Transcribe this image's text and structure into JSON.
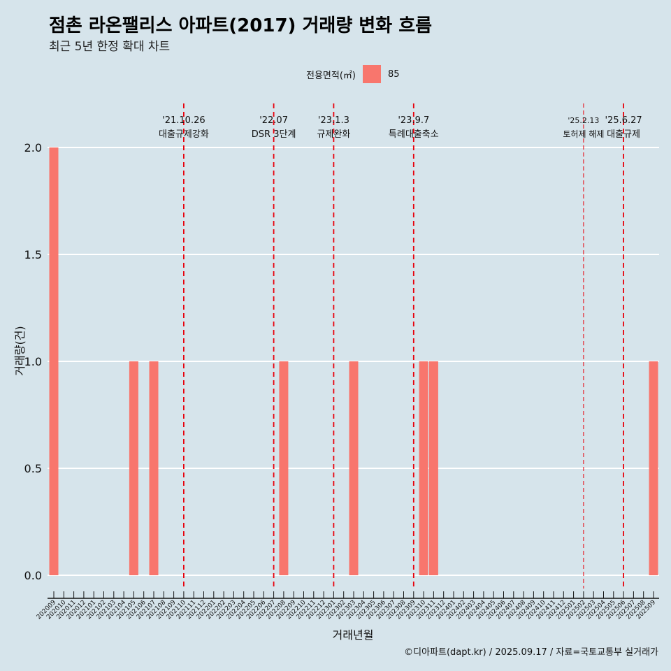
{
  "header": {
    "title": "점촌 라온팰리스 아파트(2017) 거래량 변화 흐름",
    "subtitle": "최근 5년 한정 확대 차트"
  },
  "legend": {
    "title": "전용면적(㎡)",
    "entries": [
      {
        "label": "85",
        "color": "#f8766d"
      }
    ]
  },
  "caption": "©디아파트(dapt.kr) / 2025.09.17 / 자료=국토교통부 실거래가",
  "chart_data": {
    "type": "bar",
    "title": "점촌 라온팰리스 아파트(2017) 거래량 변화 흐름",
    "subtitle": "최근 5년 한정 확대 차트",
    "xlabel": "거래년월",
    "ylabel": "거래량(건)",
    "ylim": [
      0,
      2
    ],
    "yticks": [
      "0.0",
      "0.5",
      "1.0",
      "1.5",
      "2.0"
    ],
    "grid": true,
    "legend_position": "top",
    "categories": [
      "202009",
      "202010",
      "202011",
      "202012",
      "202101",
      "202102",
      "202103",
      "202104",
      "202105",
      "202106",
      "202107",
      "202108",
      "202109",
      "202110",
      "202111",
      "202112",
      "202201",
      "202202",
      "202203",
      "202204",
      "202205",
      "202206",
      "202207",
      "202208",
      "202209",
      "202210",
      "202211",
      "202212",
      "202301",
      "202302",
      "202303",
      "202304",
      "202305",
      "202306",
      "202307",
      "202308",
      "202309",
      "202310",
      "202311",
      "202312",
      "202401",
      "202402",
      "202403",
      "202404",
      "202405",
      "202406",
      "202407",
      "202408",
      "202409",
      "202410",
      "202411",
      "202412",
      "202501",
      "202502",
      "202503",
      "202504",
      "202505",
      "202506",
      "202507",
      "202508",
      "202509"
    ],
    "series": [
      {
        "name": "85",
        "color": "#f8766d",
        "values": [
          2,
          0,
          0,
          0,
          0,
          0,
          0,
          0,
          1,
          0,
          1,
          0,
          0,
          0,
          0,
          0,
          0,
          0,
          0,
          0,
          0,
          0,
          0,
          1,
          0,
          0,
          0,
          0,
          0,
          0,
          1,
          0,
          0,
          0,
          0,
          0,
          0,
          1,
          1,
          0,
          0,
          0,
          0,
          0,
          0,
          0,
          0,
          0,
          0,
          0,
          0,
          0,
          0,
          0,
          0,
          0,
          0,
          0,
          0,
          0,
          1
        ]
      }
    ],
    "annotations": [
      {
        "x": 13.0,
        "date": "'21.10.26",
        "label": "대출규제강화",
        "style": "dashed"
      },
      {
        "x": 22.0,
        "date": "'22.07",
        "label": "DSR 3단계",
        "style": "dashed"
      },
      {
        "x": 28.0,
        "date": "'23.1.3",
        "label": "규제완화",
        "style": "dashed"
      },
      {
        "x": 36.0,
        "date": "'23.9.7",
        "label": "특례대출축소",
        "style": "dashed"
      },
      {
        "x": 53.0,
        "date": "'25.2.13",
        "label": "토허제 해제",
        "style": "dashed-thin"
      },
      {
        "x": 57.0,
        "date": "'25.6.27",
        "label": "대출규제",
        "style": "dashed"
      }
    ],
    "annotation_color": "#e8000b"
  }
}
